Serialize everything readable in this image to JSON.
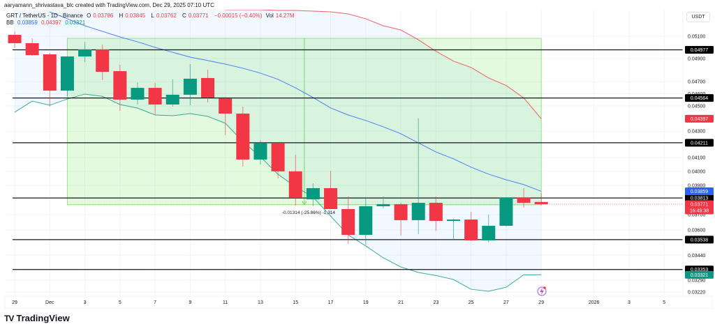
{
  "header": {
    "attribution": "aaryamann_shrivastava_blc created with TradingView.com, Dec 29, 2025 07:10 UTC",
    "symbol": "GRT / TetherUS - 1D - Binance",
    "ohlc": {
      "o_label": "O",
      "o": "0.03786",
      "h_label": "H",
      "h": "0.03845",
      "l_label": "L",
      "l": "0.03762",
      "c_label": "C",
      "c": "0.03771",
      "change": "−0.00015 (−0.40%)",
      "vol_label": "Vol",
      "vol": "14.27M"
    },
    "bb": {
      "label": "BB",
      "basis": "0.03859",
      "upper": "0.04397",
      "lower": "0.03321"
    }
  },
  "price_axis": {
    "unit": "USDT"
  },
  "footer": {
    "brand": "TradingView"
  },
  "colors": {
    "up": "#089981",
    "down": "#f23645",
    "basis": "#2962ff",
    "upper": "#f23645",
    "lower": "#089981",
    "range": "#4caf50",
    "tag": "#000000"
  },
  "chart_data": {
    "type": "candlestick",
    "title": "",
    "scale": "log",
    "ylim": [
      0.03176,
      0.05349
    ],
    "grid": true,
    "dates": [
      "2025-11-29",
      "2025-11-30",
      "2025-12-01",
      "2025-12-02",
      "2025-12-03",
      "2025-12-04",
      "2025-12-05",
      "2025-12-06",
      "2025-12-07",
      "2025-12-08",
      "2025-12-09",
      "2025-12-10",
      "2025-12-11",
      "2025-12-12",
      "2025-12-13",
      "2025-12-14",
      "2025-12-15",
      "2025-12-16",
      "2025-12-17",
      "2025-12-18",
      "2025-12-19",
      "2025-12-20",
      "2025-12-21",
      "2025-12-22",
      "2025-12-23",
      "2025-12-24",
      "2025-12-25",
      "2025-12-26",
      "2025-12-27",
      "2025-12-28",
      "2025-12-29"
    ],
    "ohlc": [
      [
        0.05113,
        0.05145,
        0.04992,
        0.05037
      ],
      [
        0.05037,
        0.05081,
        0.04925,
        0.0493
      ],
      [
        0.04937,
        0.04949,
        0.04494,
        0.04625
      ],
      [
        0.04625,
        0.04918,
        0.04579,
        0.04918
      ],
      [
        0.04918,
        0.05049,
        0.04869,
        0.0498
      ],
      [
        0.0498,
        0.05024,
        0.04713,
        0.04784
      ],
      [
        0.0479,
        0.04845,
        0.0446,
        0.04551
      ],
      [
        0.04551,
        0.04695,
        0.04511,
        0.04648
      ],
      [
        0.04648,
        0.04689,
        0.04427,
        0.04511
      ],
      [
        0.04511,
        0.04719,
        0.04494,
        0.04591
      ],
      [
        0.04591,
        0.04851,
        0.04505,
        0.04725
      ],
      [
        0.04731,
        0.04802,
        0.04528,
        0.04568
      ],
      [
        0.04562,
        0.04573,
        0.04269,
        0.04438
      ],
      [
        0.04438,
        0.04494,
        0.04035,
        0.04086
      ],
      [
        0.04086,
        0.04231,
        0.0405,
        0.0421
      ],
      [
        0.0421,
        0.0421,
        0.0395,
        0.04
      ],
      [
        0.04,
        0.04122,
        0.03761,
        0.03814
      ],
      [
        0.03804,
        0.03915,
        0.03757,
        0.03881
      ],
      [
        0.03881,
        0.04004,
        0.03738,
        0.03738
      ],
      [
        0.03738,
        0.03823,
        0.03511,
        0.03568
      ],
      [
        0.03568,
        0.03819,
        0.03507,
        0.03757
      ],
      [
        0.03757,
        0.03823,
        0.03743,
        0.03771
      ],
      [
        0.03771,
        0.0378,
        0.03564,
        0.03664
      ],
      [
        0.03664,
        0.04399,
        0.03573,
        0.0378
      ],
      [
        0.0378,
        0.03823,
        0.03595,
        0.03659
      ],
      [
        0.03659,
        0.03673,
        0.03542,
        0.03668
      ],
      [
        0.03668,
        0.03719,
        0.03529,
        0.03533
      ],
      [
        0.03533,
        0.03701,
        0.0352,
        0.03627
      ],
      [
        0.03627,
        0.03819,
        0.03623,
        0.03814
      ],
      [
        0.03814,
        0.03881,
        0.03748,
        0.0378
      ],
      [
        0.03786,
        0.03845,
        0.03762,
        0.03771
      ]
    ],
    "bollinger": {
      "basis": [
        null,
        null,
        0.05329,
        0.05263,
        0.05197,
        0.05145,
        0.05094,
        0.05049,
        0.04999,
        0.04955,
        0.04912,
        0.04882,
        0.04851,
        0.04815,
        0.04773,
        0.0472,
        0.04648,
        0.04568,
        0.04483,
        0.04427,
        0.04383,
        0.04334,
        0.0428,
        0.0421,
        0.04142,
        0.04091,
        0.0403,
        0.0398,
        0.0394,
        0.03906,
        0.03859
      ],
      "upper": [
        null,
        null,
        null,
        null,
        null,
        null,
        null,
        null,
        null,
        null,
        null,
        null,
        0.05349,
        0.05349,
        0.05349,
        0.05342,
        0.05342,
        0.05336,
        0.05329,
        0.05309,
        0.05263,
        0.05197,
        0.05158,
        0.05068,
        0.04964,
        0.04877,
        0.04822,
        0.04732,
        0.04668,
        0.04565,
        0.04397
      ],
      "lower": [
        0.04449,
        0.04539,
        0.04505,
        0.04556,
        0.04596,
        0.04578,
        0.04511,
        0.04482,
        0.04427,
        0.04421,
        0.04438,
        0.04416,
        0.04361,
        0.04221,
        0.04106,
        0.03979,
        0.03891,
        0.03819,
        0.03691,
        0.03568,
        0.03498,
        0.03424,
        0.03368,
        0.03335,
        0.03317,
        0.03293,
        0.03236,
        0.03224,
        0.03248,
        0.03321,
        0.03321
      ]
    },
    "horizontal_levels": [
      "0.04977",
      "0.04564",
      "0.04211",
      "0.03813",
      "0.03538",
      "0.03353"
    ],
    "price_range": {
      "from_date": "2025-12-02",
      "to_date": "2025-12-29",
      "from_price": 0.05081,
      "to_price": 0.03767,
      "label": "-0.01314 (-25.86%) -1,314"
    },
    "y_ticks": [
      "0.05100",
      "0.04900",
      "0.04700",
      "0.04600",
      "0.04500",
      "0.04300",
      "0.04100",
      "0.04000",
      "0.03900",
      "0.03700",
      "0.03600",
      "0.03440",
      "0.03290",
      "0.03220"
    ],
    "x_ticks": [
      {
        "label": "29",
        "date": "2025-11-29"
      },
      {
        "label": "Dec",
        "date": "2025-12-01"
      },
      {
        "label": "3",
        "date": "2025-12-03"
      },
      {
        "label": "5",
        "date": "2025-12-05"
      },
      {
        "label": "7",
        "date": "2025-12-07"
      },
      {
        "label": "9",
        "date": "2025-12-09"
      },
      {
        "label": "11",
        "date": "2025-12-11"
      },
      {
        "label": "13",
        "date": "2025-12-13"
      },
      {
        "label": "15",
        "date": "2025-12-15"
      },
      {
        "label": "17",
        "date": "2025-12-17"
      },
      {
        "label": "19",
        "date": "2025-12-19"
      },
      {
        "label": "21",
        "date": "2025-12-21"
      },
      {
        "label": "23",
        "date": "2025-12-23"
      },
      {
        "label": "25",
        "date": "2025-12-25"
      },
      {
        "label": "27",
        "date": "2025-12-27"
      },
      {
        "label": "29",
        "date": "2025-12-29"
      },
      {
        "label": "2026",
        "date": "2026-01-01"
      },
      {
        "label": "3",
        "date": "2026-01-03"
      },
      {
        "label": "5",
        "date": "2026-01-05"
      }
    ],
    "tags": {
      "basis": "0.03859",
      "upper": "0.04397",
      "lower": "0.03321",
      "last_price": "0.03771",
      "countdown": "16:49:38"
    }
  }
}
